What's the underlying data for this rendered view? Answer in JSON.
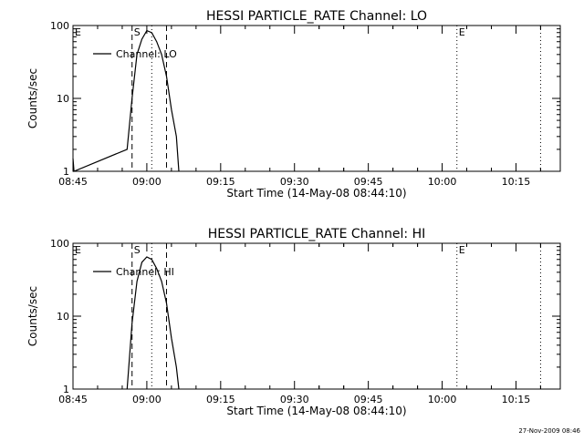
{
  "footer": {
    "timestamp": "27-Nov-2009 08:46"
  },
  "colors": {
    "background": "#ffffff",
    "foreground": "#000000"
  },
  "chart_data": [
    {
      "type": "line",
      "title": "HESSI PARTICLE_RATE Channel: LO",
      "xlabel": "Start Time (14-May-08 08:44:10)",
      "ylabel": "Counts/sec",
      "yscale": "log",
      "ylim": [
        1,
        100
      ],
      "xlim": [
        "08:45",
        "10:24"
      ],
      "xticks": [
        "08:45",
        "09:00",
        "09:15",
        "09:30",
        "09:45",
        "10:00",
        "10:15"
      ],
      "yticks": [
        "1",
        "10",
        "100"
      ],
      "grid": false,
      "legend": {
        "placement": "top-left",
        "entries": [
          "Channel: LO"
        ]
      },
      "markers": [
        {
          "label": "E",
          "time": "08:45",
          "style": "none"
        },
        {
          "label": "S",
          "time": "08:57",
          "style": "dashed"
        },
        {
          "label": "",
          "time": "09:04",
          "style": "dashed"
        },
        {
          "label": "",
          "time": "09:01",
          "style": "dotted"
        },
        {
          "label": "E",
          "time": "10:03",
          "style": "dotted"
        },
        {
          "label": "",
          "time": "10:20",
          "style": "dotted"
        }
      ],
      "series": [
        {
          "name": "Channel: LO",
          "points": [
            {
              "x": "08:45",
              "y": 1.5
            },
            {
              "x": "08:45.2",
              "y": 1.0
            },
            {
              "x": "08:56",
              "y": 2.0
            },
            {
              "x": "08:57",
              "y": 10
            },
            {
              "x": "08:58",
              "y": 40
            },
            {
              "x": "08:59",
              "y": 65
            },
            {
              "x": "09:00",
              "y": 85
            },
            {
              "x": "09:01",
              "y": 80
            },
            {
              "x": "09:02",
              "y": 60
            },
            {
              "x": "09:03",
              "y": 40
            },
            {
              "x": "09:04",
              "y": 20
            },
            {
              "x": "09:05",
              "y": 7
            },
            {
              "x": "09:06",
              "y": 3
            },
            {
              "x": "09:06.5",
              "y": 1.0
            }
          ]
        }
      ]
    },
    {
      "type": "line",
      "title": "HESSI PARTICLE_RATE Channel: HI",
      "xlabel": "Start Time (14-May-08 08:44:10)",
      "ylabel": "Counts/sec",
      "yscale": "log",
      "ylim": [
        1,
        100
      ],
      "xlim": [
        "08:45",
        "10:24"
      ],
      "xticks": [
        "08:45",
        "09:00",
        "09:15",
        "09:30",
        "09:45",
        "10:00",
        "10:15"
      ],
      "yticks": [
        "1",
        "10",
        "100"
      ],
      "grid": false,
      "legend": {
        "placement": "top-left",
        "entries": [
          "Channel: HI"
        ]
      },
      "markers": [
        {
          "label": "E",
          "time": "08:45",
          "style": "none"
        },
        {
          "label": "S",
          "time": "08:57",
          "style": "dashed"
        },
        {
          "label": "",
          "time": "09:04",
          "style": "dashed"
        },
        {
          "label": "",
          "time": "09:01",
          "style": "dotted"
        },
        {
          "label": "E",
          "time": "10:03",
          "style": "dotted"
        },
        {
          "label": "",
          "time": "10:20",
          "style": "dotted"
        }
      ],
      "series": [
        {
          "name": "Channel: HI",
          "points": [
            {
              "x": "08:56",
              "y": 1.0
            },
            {
              "x": "08:57",
              "y": 8
            },
            {
              "x": "08:58",
              "y": 30
            },
            {
              "x": "08:59",
              "y": 55
            },
            {
              "x": "09:00",
              "y": 65
            },
            {
              "x": "09:01",
              "y": 60
            },
            {
              "x": "09:02",
              "y": 45
            },
            {
              "x": "09:03",
              "y": 30
            },
            {
              "x": "09:04",
              "y": 15
            },
            {
              "x": "09:05",
              "y": 5
            },
            {
              "x": "09:06",
              "y": 2
            },
            {
              "x": "09:06.5",
              "y": 1.0
            }
          ]
        }
      ]
    }
  ]
}
